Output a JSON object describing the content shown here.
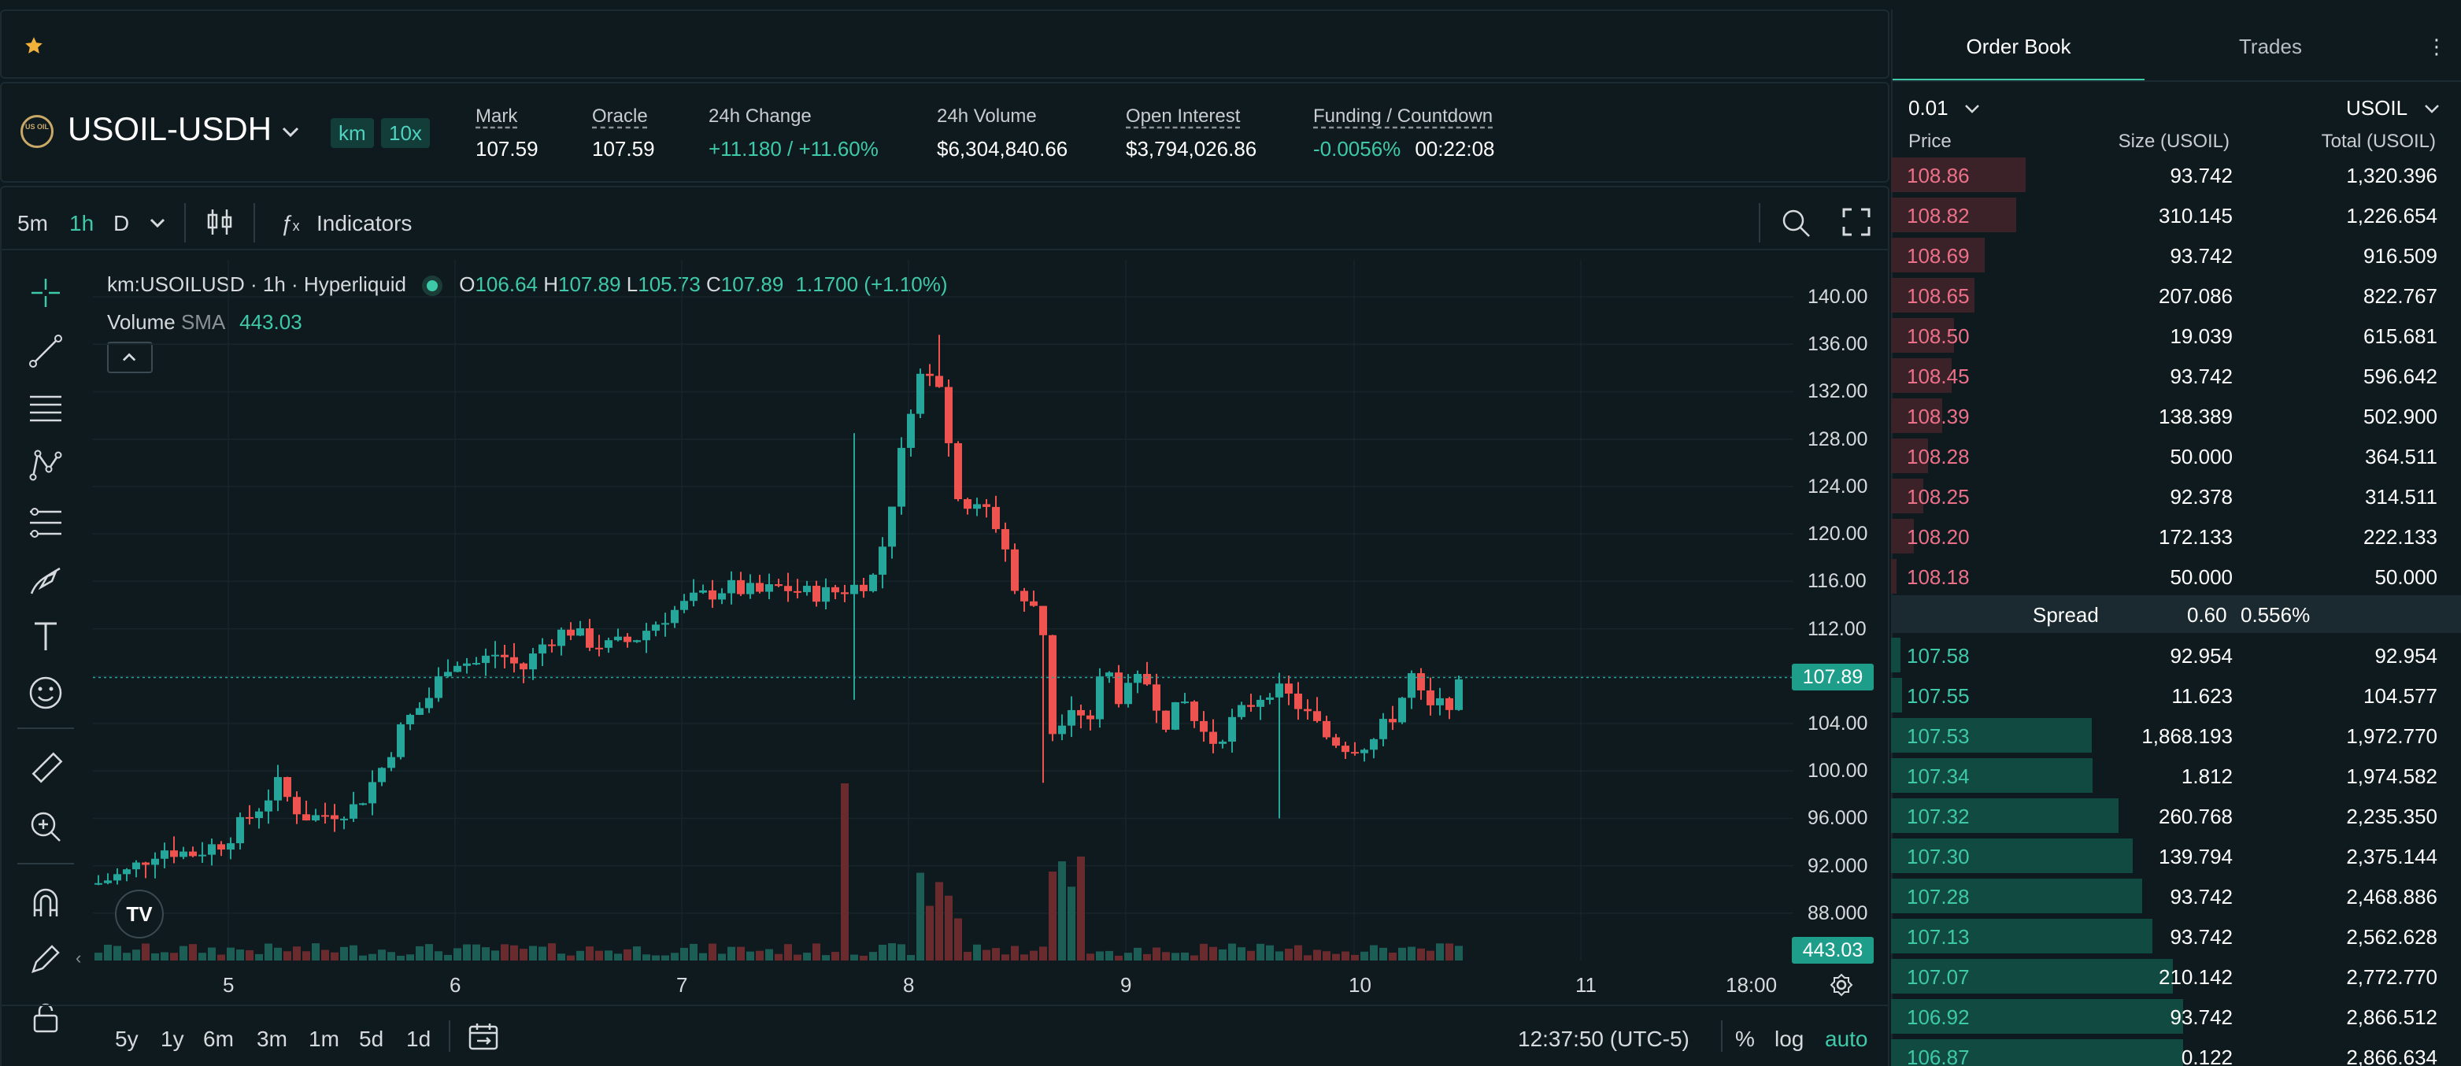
{
  "market": {
    "symbol": "USOIL-USDH",
    "logo_text": "US OIL",
    "tags": [
      "km",
      "10x"
    ],
    "stats": [
      {
        "label": "Mark",
        "value": "107.59",
        "dashed": true
      },
      {
        "label": "Oracle",
        "value": "107.59",
        "dashed": true
      },
      {
        "label": "24h Change",
        "value": "+11.180 / +11.60%",
        "green": true,
        "dashed": false
      },
      {
        "label": "24h Volume",
        "value": "$6,304,840.66",
        "dashed": false
      },
      {
        "label": "Open Interest",
        "value": "$3,794,026.86",
        "dashed": true
      }
    ],
    "funding": {
      "label": "Funding / Countdown",
      "rate": "-0.0056%",
      "countdown": "00:22:08"
    }
  },
  "toolbar": {
    "intervals": [
      "5m",
      "1h",
      "D"
    ],
    "active_interval": "1h",
    "indicators_label": "Indicators"
  },
  "legend": {
    "title": "km:USOILUSD · 1h · Hyperliquid",
    "o_label": "O",
    "o": "106.64",
    "h_label": "H",
    "h": "107.89",
    "l_label": "L",
    "l": "105.73",
    "c_label": "C",
    "c": "107.89",
    "change": "1.1700 (+1.10%)",
    "volume_label": "Volume",
    "sma_label": "SMA",
    "sma_value": "443.03"
  },
  "chart_data": {
    "type": "candlestick",
    "y_ticks": [
      "140.00",
      "136.00",
      "132.00",
      "128.00",
      "124.00",
      "120.00",
      "116.00",
      "112.00",
      "108.00",
      "104.00",
      "100.00",
      "96.000",
      "92.000",
      "88.000"
    ],
    "ylim": [
      86,
      141
    ],
    "x_ticks": [
      "5",
      "6",
      "7",
      "8",
      "9",
      "10",
      "11",
      "18:00"
    ],
    "last_price": "107.89",
    "volume_sma": "443.03",
    "colors": {
      "up": "#26a69a",
      "down": "#ef5350"
    }
  },
  "time_ranges": [
    "5y",
    "1y",
    "6m",
    "3m",
    "1m",
    "5d",
    "1d"
  ],
  "clock": "12:37:50 (UTC-5)",
  "scale_opts": {
    "percent": "%",
    "log": "log",
    "auto": "auto"
  },
  "book": {
    "tabs": [
      "Order Book",
      "Trades"
    ],
    "tick_size": "0.01",
    "unit": "USOIL",
    "headers": {
      "price": "Price",
      "size": "Size (USOIL)",
      "total": "Total (USOIL)"
    },
    "asks": [
      {
        "price": "108.86",
        "size": "93.742",
        "total": "1,320.396",
        "depth": 0.236
      },
      {
        "price": "108.82",
        "size": "310.145",
        "total": "1,226.654",
        "depth": 0.219
      },
      {
        "price": "108.69",
        "size": "93.742",
        "total": "916.509",
        "depth": 0.164
      },
      {
        "price": "108.65",
        "size": "207.086",
        "total": "822.767",
        "depth": 0.147
      },
      {
        "price": "108.50",
        "size": "19.039",
        "total": "615.681",
        "depth": 0.11
      },
      {
        "price": "108.45",
        "size": "93.742",
        "total": "596.642",
        "depth": 0.107
      },
      {
        "price": "108.39",
        "size": "138.389",
        "total": "502.900",
        "depth": 0.09
      },
      {
        "price": "108.28",
        "size": "50.000",
        "total": "364.511",
        "depth": 0.065
      },
      {
        "price": "108.25",
        "size": "92.378",
        "total": "314.511",
        "depth": 0.056
      },
      {
        "price": "108.20",
        "size": "172.133",
        "total": "222.133",
        "depth": 0.04
      },
      {
        "price": "108.18",
        "size": "50.000",
        "total": "50.000",
        "depth": 0.009
      }
    ],
    "spread": {
      "label": "Spread",
      "value": "0.60",
      "pct": "0.556%"
    },
    "bids": [
      {
        "price": "107.58",
        "size": "92.954",
        "total": "92.954",
        "depth": 0.017
      },
      {
        "price": "107.55",
        "size": "11.623",
        "total": "104.577",
        "depth": 0.019
      },
      {
        "price": "107.53",
        "size": "1,868.193",
        "total": "1,972.770",
        "depth": 0.352
      },
      {
        "price": "107.34",
        "size": "1.812",
        "total": "1,974.582",
        "depth": 0.353
      },
      {
        "price": "107.32",
        "size": "260.768",
        "total": "2,235.350",
        "depth": 0.399
      },
      {
        "price": "107.30",
        "size": "139.794",
        "total": "2,375.144",
        "depth": 0.424
      },
      {
        "price": "107.28",
        "size": "93.742",
        "total": "2,468.886",
        "depth": 0.441
      },
      {
        "price": "107.13",
        "size": "93.742",
        "total": "2,562.628",
        "depth": 0.458
      },
      {
        "price": "107.07",
        "size": "210.142",
        "total": "2,772.770",
        "depth": 0.495
      },
      {
        "price": "106.92",
        "size": "93.742",
        "total": "2,866.512",
        "depth": 0.512
      },
      {
        "price": "106.87",
        "size": "0.122",
        "total": "2,866.634",
        "depth": 0.512
      }
    ]
  }
}
